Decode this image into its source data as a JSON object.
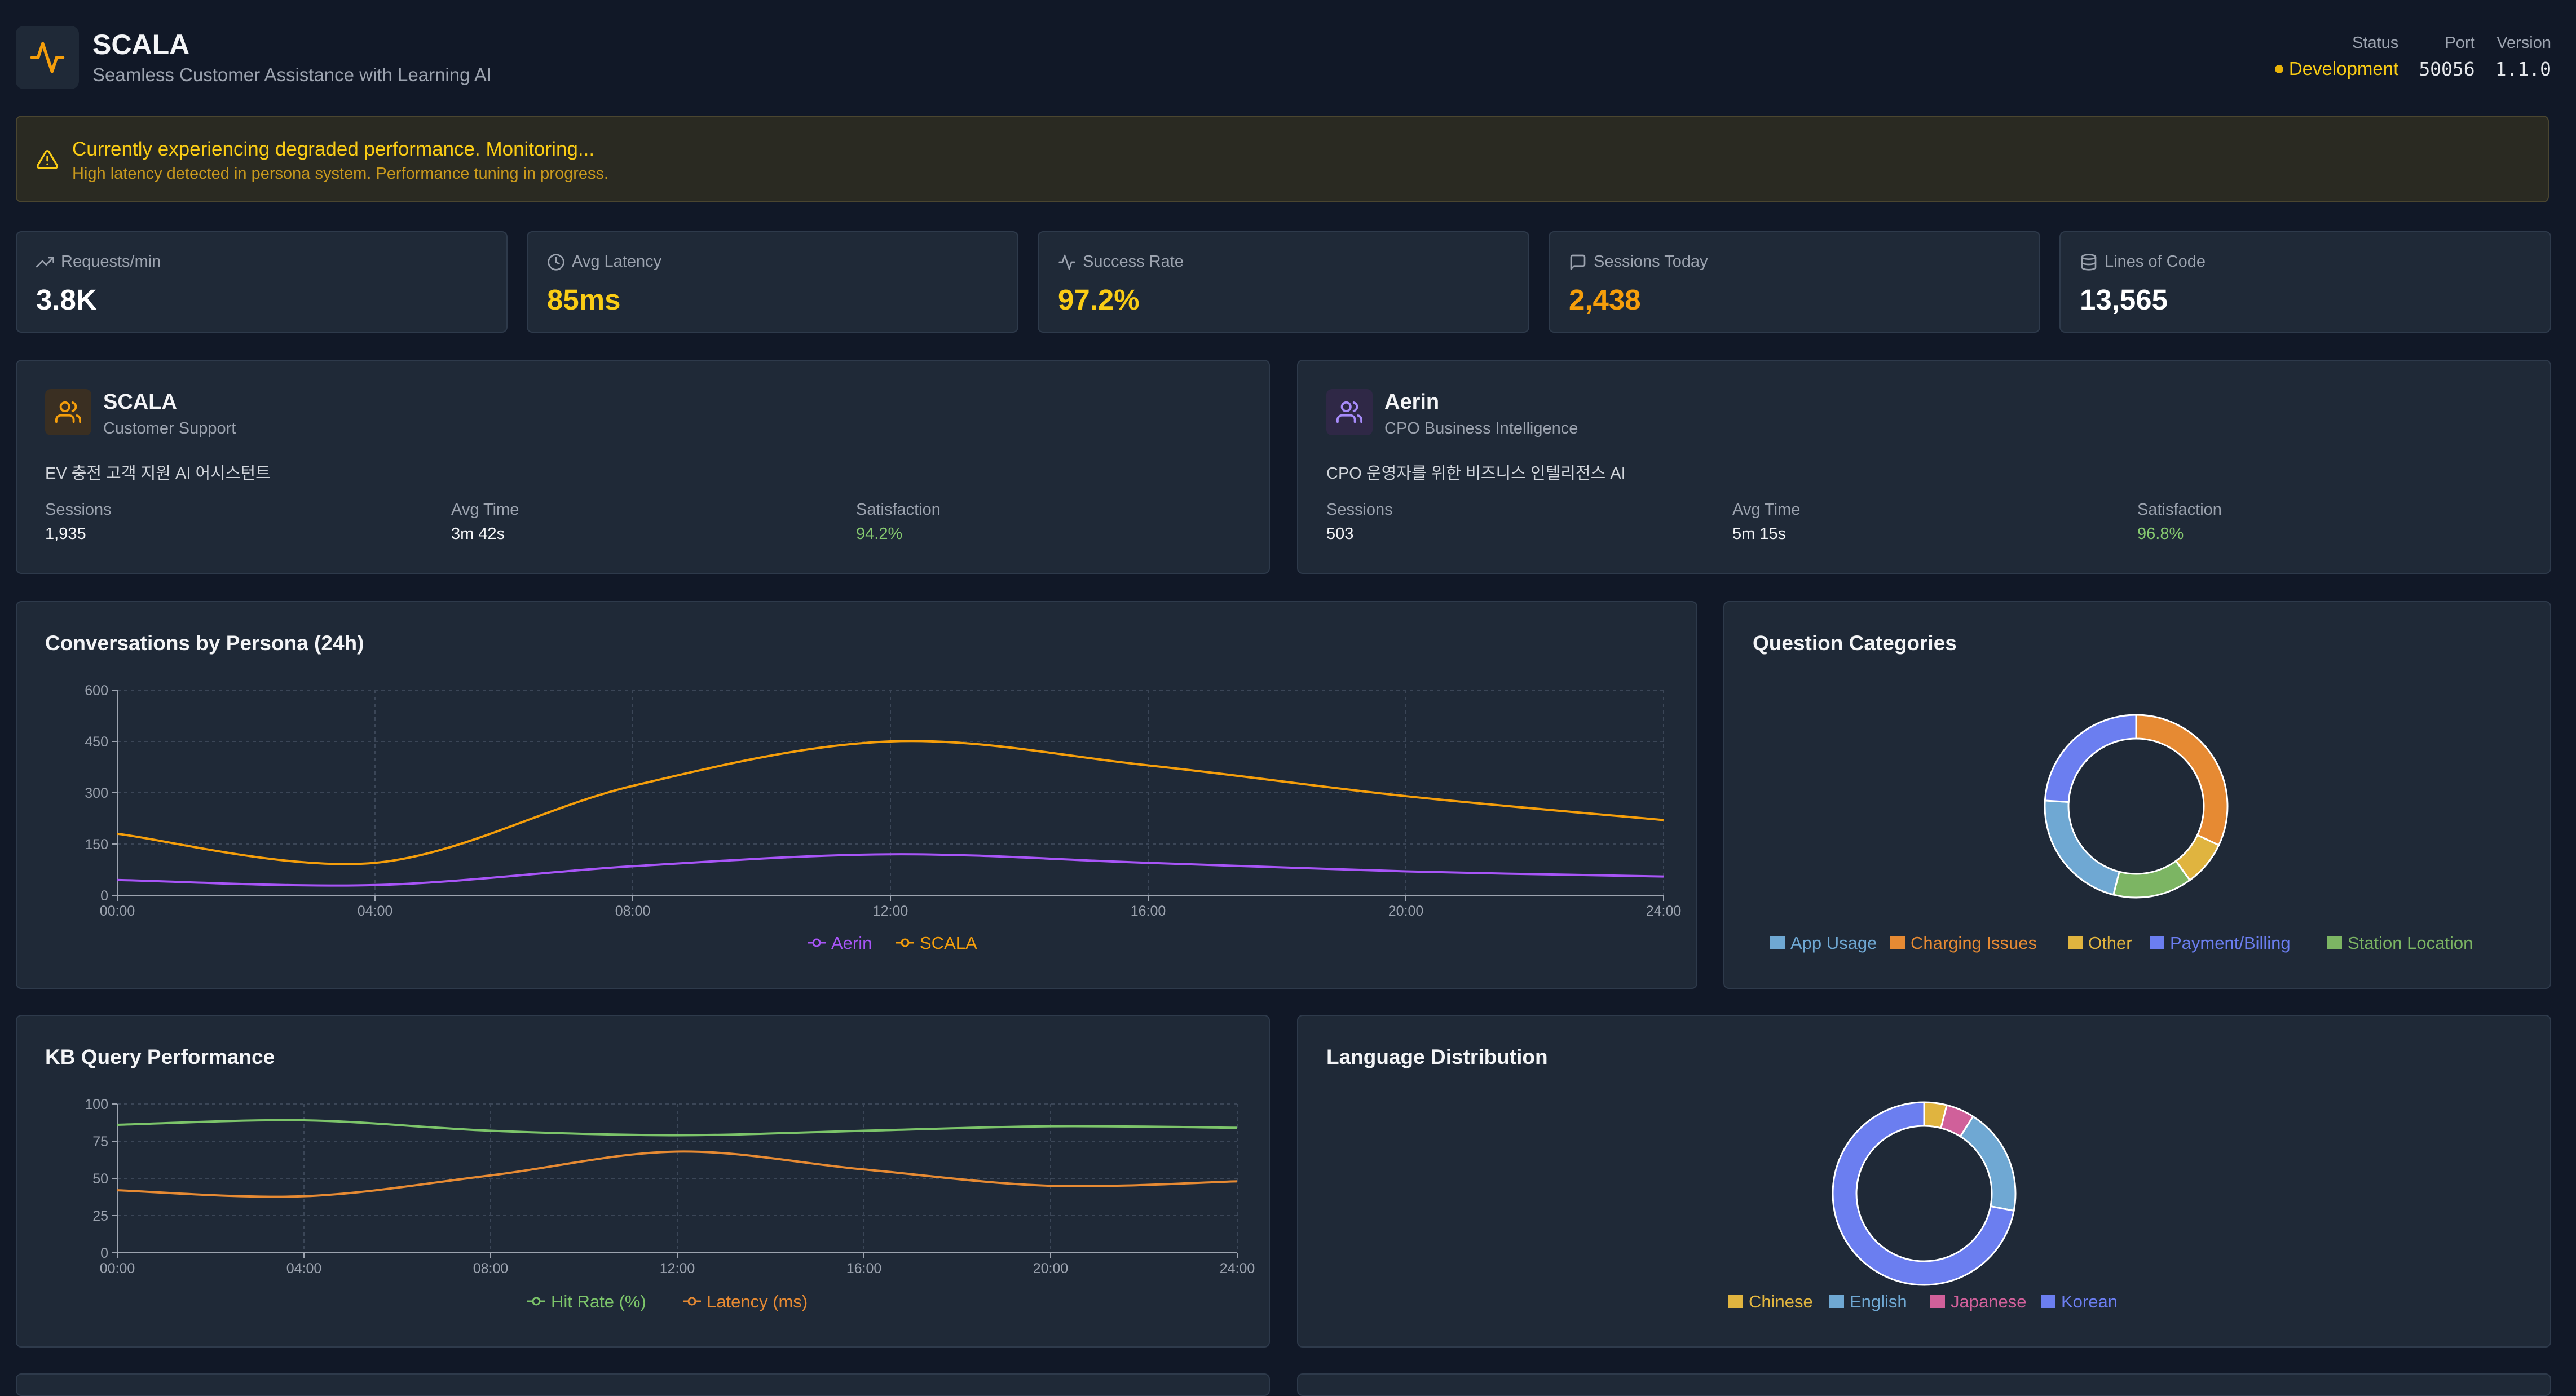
{
  "header": {
    "title": "SCALA",
    "subtitle": "Seamless Customer Assistance with Learning AI",
    "status_label": "Status",
    "status_value": "Development",
    "port_label": "Port",
    "port_value": "50056",
    "version_label": "Version",
    "version_value": "1.1.0"
  },
  "alert": {
    "title": "Currently experiencing degraded performance. Monitoring...",
    "description": "High latency detected in persona system. Performance tuning in progress."
  },
  "stats": [
    {
      "label": "Requests/min",
      "value": "3.8K",
      "icon": "trending-up-icon",
      "color": "#ffffff"
    },
    {
      "label": "Avg Latency",
      "value": "85ms",
      "icon": "clock-icon",
      "color": "#facc15"
    },
    {
      "label": "Success Rate",
      "value": "97.2%",
      "icon": "activity-icon",
      "color": "#facc15"
    },
    {
      "label": "Sessions Today",
      "value": "2,438",
      "icon": "message-icon",
      "color": "#f59e0b"
    },
    {
      "label": "Lines of Code",
      "value": "13,565",
      "icon": "database-icon",
      "color": "#ffffff"
    }
  ],
  "personas": [
    {
      "name": "SCALA",
      "role": "Customer Support",
      "description": "EV 충전 고객 지원 AI 어시스턴트",
      "sessions_label": "Sessions",
      "sessions": "1,935",
      "avg_time_label": "Avg Time",
      "avg_time": "3m 42s",
      "satisfaction_label": "Satisfaction",
      "satisfaction": "94.2%",
      "icon_color": "#f59e0b"
    },
    {
      "name": "Aerin",
      "role": "CPO Business Intelligence",
      "description": "CPO 운영자를 위한 비즈니스 인텔리전스 AI",
      "sessions_label": "Sessions",
      "sessions": "503",
      "avg_time_label": "Avg Time",
      "avg_time": "5m 15s",
      "satisfaction_label": "Satisfaction",
      "satisfaction": "96.8%",
      "icon_color": "#a78bfa"
    }
  ],
  "charts": {
    "conversations_title": "Conversations by Persona (24h)",
    "categories_title": "Question Categories",
    "kb_title": "KB Query Performance",
    "language_title": "Language Distribution"
  },
  "chart_data": [
    {
      "type": "line",
      "title": "Conversations by Persona (24h)",
      "x": [
        "00:00",
        "04:00",
        "08:00",
        "12:00",
        "16:00",
        "20:00",
        "24:00"
      ],
      "ylim": [
        0,
        600
      ],
      "yticks": [
        0,
        150,
        300,
        450,
        600
      ],
      "grid": true,
      "legend": "bottom",
      "series": [
        {
          "name": "Aerin",
          "color": "#a855f7",
          "values": [
            45,
            30,
            85,
            120,
            95,
            70,
            55
          ]
        },
        {
          "name": "SCALA",
          "color": "#f59e0b",
          "values": [
            180,
            95,
            320,
            450,
            380,
            290,
            220
          ]
        }
      ]
    },
    {
      "type": "pie",
      "title": "Question Categories",
      "donut": true,
      "legend": "bottom",
      "slices": [
        {
          "label": "Charging Issues",
          "value": 32,
          "color": "#e68a33"
        },
        {
          "label": "Other",
          "value": 8,
          "color": "#e0b43f"
        },
        {
          "label": "Station Location",
          "value": 14,
          "color": "#7cb563"
        },
        {
          "label": "App Usage",
          "value": 22,
          "color": "#6fa8d3"
        },
        {
          "label": "Payment/Billing",
          "value": 24,
          "color": "#6b7ef0"
        }
      ],
      "legend_order": [
        "App Usage",
        "Charging Issues",
        "Other",
        "Payment/Billing",
        "Station Location"
      ]
    },
    {
      "type": "line",
      "title": "KB Query Performance",
      "x": [
        "00:00",
        "04:00",
        "08:00",
        "12:00",
        "16:00",
        "20:00",
        "24:00"
      ],
      "ylim": [
        0,
        100
      ],
      "yticks": [
        0,
        25,
        50,
        75,
        100
      ],
      "grid": true,
      "legend": "bottom",
      "series": [
        {
          "name": "Hit Rate (%)",
          "color": "#7cc46a",
          "values": [
            86,
            89,
            82,
            79,
            82,
            85,
            84
          ]
        },
        {
          "name": "Latency (ms)",
          "color": "#e68a33",
          "values": [
            42,
            38,
            52,
            68,
            56,
            45,
            48
          ]
        }
      ]
    },
    {
      "type": "pie",
      "title": "Language Distribution",
      "donut": true,
      "legend": "bottom",
      "slices": [
        {
          "label": "Chinese",
          "value": 4,
          "color": "#e0b43f"
        },
        {
          "label": "Japanese",
          "value": 5,
          "color": "#d0609a"
        },
        {
          "label": "English",
          "value": 19,
          "color": "#6fa8d3"
        },
        {
          "label": "Korean",
          "value": 72,
          "color": "#6b7ef0"
        }
      ],
      "legend_order": [
        "Chinese",
        "English",
        "Japanese",
        "Korean"
      ]
    }
  ]
}
